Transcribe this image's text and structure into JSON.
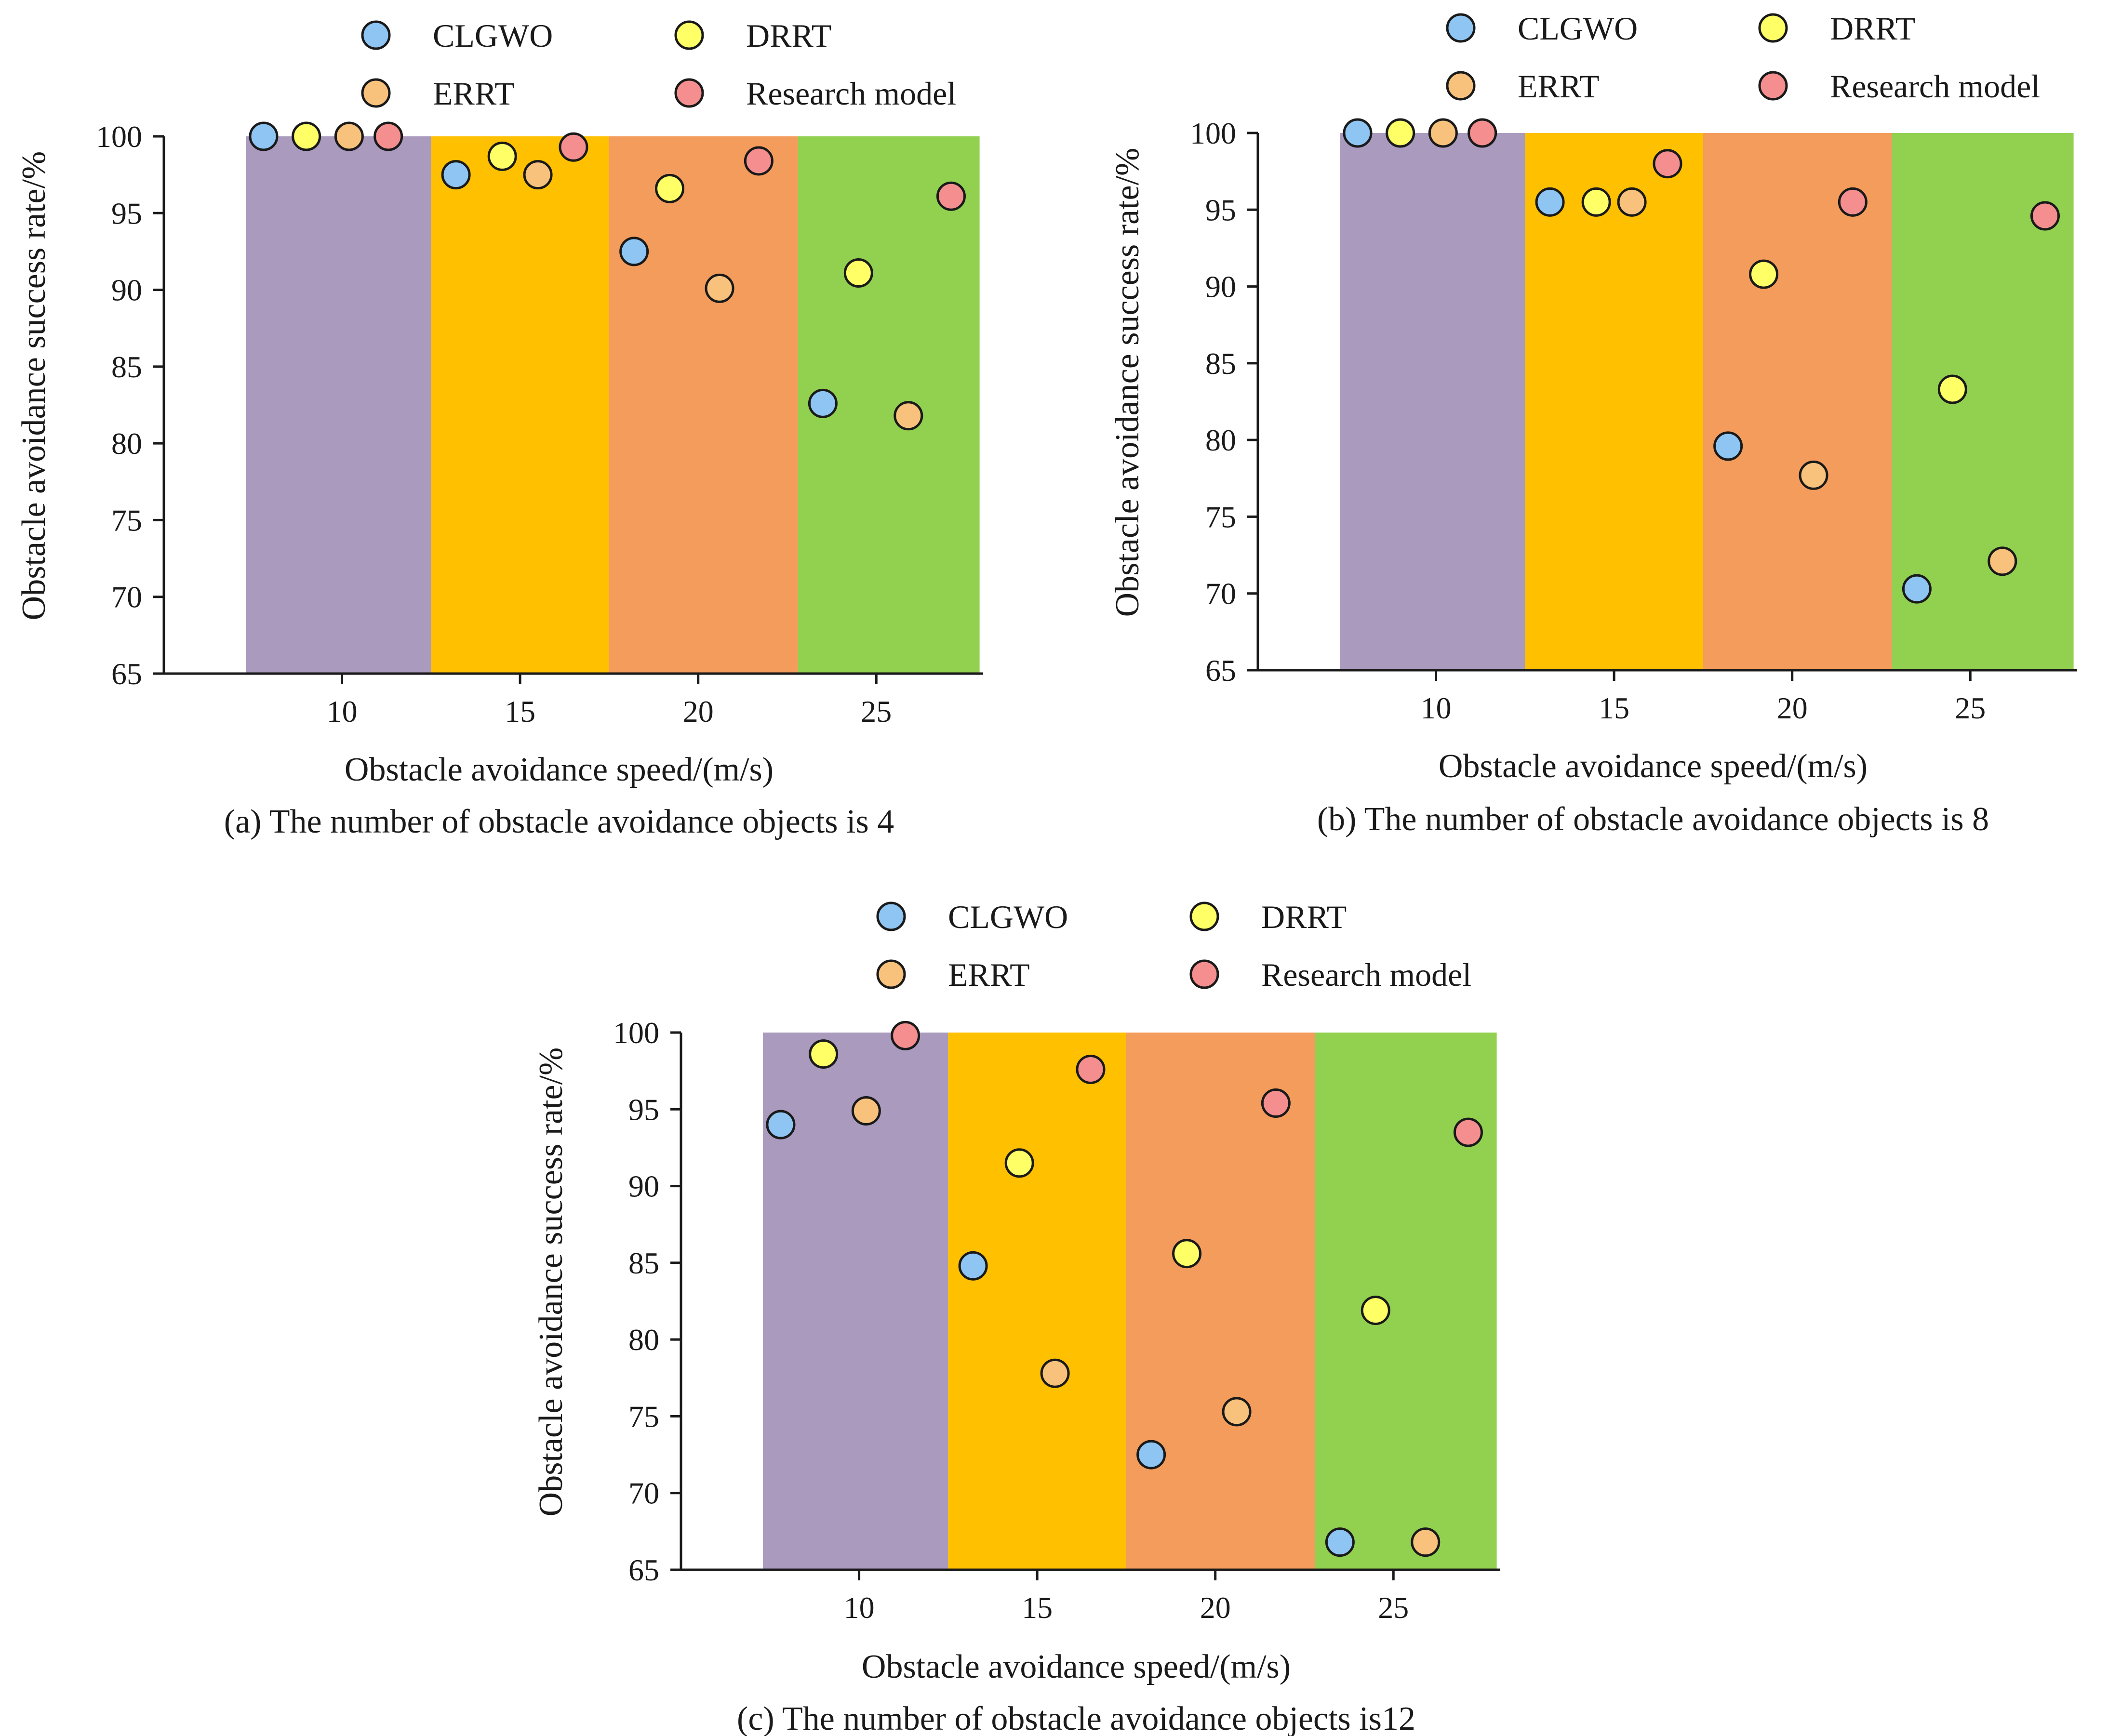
{
  "chart_data": [
    {
      "type": "scatter",
      "caption": "(a) The number of obstacle avoidance objects is 4",
      "xlabel": "Obstacle avoidance speed/(m/s)",
      "ylabel": "Obstacle avoidance success rate/%",
      "xlim": [
        5,
        28
      ],
      "ylim": [
        65,
        100
      ],
      "xticks": [
        "10",
        "15",
        "20",
        "25"
      ],
      "yticks": [
        "65",
        "70",
        "75",
        "80",
        "85",
        "90",
        "95",
        "100"
      ],
      "grid": false,
      "legend": "top, two columns",
      "bands": [
        {
          "speed": 10,
          "from": 7.3,
          "to": 12.5,
          "color": "#a99abe"
        },
        {
          "speed": 15,
          "from": 12.5,
          "to": 17.5,
          "color": "#ffc000"
        },
        {
          "speed": 20,
          "from": 17.5,
          "to": 22.8,
          "color": "#f49c5c"
        },
        {
          "speed": 25,
          "from": 22.8,
          "to": 27.9,
          "color": "#92d050"
        }
      ],
      "series": [
        {
          "name": "CLGWO",
          "color": "#8ec5f3",
          "points": [
            [
              7.8,
              100
            ],
            [
              13.2,
              97.5
            ],
            [
              18.2,
              92.5
            ],
            [
              23.5,
              82.6
            ]
          ]
        },
        {
          "name": "DRRT",
          "color": "#ffff66",
          "points": [
            [
              9.0,
              100
            ],
            [
              14.5,
              98.7
            ],
            [
              19.2,
              96.6
            ],
            [
              24.5,
              91.1
            ]
          ]
        },
        {
          "name": "ERRT",
          "color": "#f8c27c",
          "points": [
            [
              10.2,
              100
            ],
            [
              15.5,
              97.5
            ],
            [
              20.6,
              90.1
            ],
            [
              25.9,
              81.8
            ]
          ]
        },
        {
          "name": "Research model",
          "color": "#f58f8f",
          "points": [
            [
              11.3,
              100
            ],
            [
              16.5,
              99.3
            ],
            [
              21.7,
              98.4
            ],
            [
              27.1,
              96.1
            ]
          ]
        }
      ]
    },
    {
      "type": "scatter",
      "caption": "(b) The number of obstacle avoidance objects is 8",
      "xlabel": "Obstacle avoidance speed/(m/s)",
      "ylabel": "Obstacle avoidance success rate/%",
      "xlim": [
        5,
        28
      ],
      "ylim": [
        65,
        100
      ],
      "xticks": [
        "10",
        "15",
        "20",
        "25"
      ],
      "yticks": [
        "65",
        "70",
        "75",
        "80",
        "85",
        "90",
        "95",
        "100"
      ],
      "grid": false,
      "legend": "top, two columns",
      "bands": [
        {
          "speed": 10,
          "from": 7.3,
          "to": 12.5,
          "color": "#a99abe"
        },
        {
          "speed": 15,
          "from": 12.5,
          "to": 17.5,
          "color": "#ffc000"
        },
        {
          "speed": 20,
          "from": 17.5,
          "to": 22.8,
          "color": "#f49c5c"
        },
        {
          "speed": 25,
          "from": 22.8,
          "to": 27.9,
          "color": "#92d050"
        }
      ],
      "series": [
        {
          "name": "CLGWO",
          "color": "#8ec5f3",
          "points": [
            [
              7.8,
              100
            ],
            [
              13.2,
              95.5
            ],
            [
              18.2,
              79.6
            ],
            [
              23.5,
              70.3
            ]
          ]
        },
        {
          "name": "DRRT",
          "color": "#ffff66",
          "points": [
            [
              9.0,
              100
            ],
            [
              14.5,
              95.5
            ],
            [
              19.2,
              90.8
            ],
            [
              24.5,
              83.3
            ]
          ]
        },
        {
          "name": "ERRT",
          "color": "#f8c27c",
          "points": [
            [
              10.2,
              100
            ],
            [
              15.5,
              95.5
            ],
            [
              20.6,
              77.7
            ],
            [
              25.9,
              72.1
            ]
          ]
        },
        {
          "name": "Research model",
          "color": "#f58f8f",
          "points": [
            [
              11.3,
              100
            ],
            [
              16.5,
              98
            ],
            [
              21.7,
              95.5
            ],
            [
              27.1,
              94.6
            ]
          ]
        }
      ]
    },
    {
      "type": "scatter",
      "caption": "(c) The number of obstacle avoidance objects is12",
      "xlabel": "Obstacle avoidance speed/(m/s)",
      "ylabel": "Obstacle avoidance success rate/%",
      "xlim": [
        5,
        28
      ],
      "ylim": [
        65,
        100
      ],
      "xticks": [
        "10",
        "15",
        "20",
        "25"
      ],
      "yticks": [
        "65",
        "70",
        "75",
        "80",
        "85",
        "90",
        "95",
        "100"
      ],
      "grid": false,
      "legend": "top, two columns",
      "bands": [
        {
          "speed": 10,
          "from": 7.3,
          "to": 12.5,
          "color": "#a99abe"
        },
        {
          "speed": 15,
          "from": 12.5,
          "to": 17.5,
          "color": "#ffc000"
        },
        {
          "speed": 20,
          "from": 17.5,
          "to": 22.8,
          "color": "#f49c5c"
        },
        {
          "speed": 25,
          "from": 22.8,
          "to": 27.9,
          "color": "#92d050"
        }
      ],
      "series": [
        {
          "name": "CLGWO",
          "color": "#8ec5f3",
          "points": [
            [
              7.8,
              94
            ],
            [
              13.2,
              84.8
            ],
            [
              18.2,
              72.5
            ],
            [
              23.5,
              66.8
            ]
          ]
        },
        {
          "name": "DRRT",
          "color": "#ffff66",
          "points": [
            [
              9.0,
              98.6
            ],
            [
              14.5,
              91.5
            ],
            [
              19.2,
              85.6
            ],
            [
              24.5,
              81.9
            ]
          ]
        },
        {
          "name": "ERRT",
          "color": "#f8c27c",
          "points": [
            [
              10.2,
              94.9
            ],
            [
              15.5,
              77.8
            ],
            [
              20.6,
              75.3
            ],
            [
              25.9,
              66.8
            ]
          ]
        },
        {
          "name": "Research model",
          "color": "#f58f8f",
          "points": [
            [
              11.3,
              99.8
            ],
            [
              16.5,
              97.6
            ],
            [
              21.7,
              95.4
            ],
            [
              27.1,
              93.5
            ]
          ]
        }
      ]
    }
  ]
}
